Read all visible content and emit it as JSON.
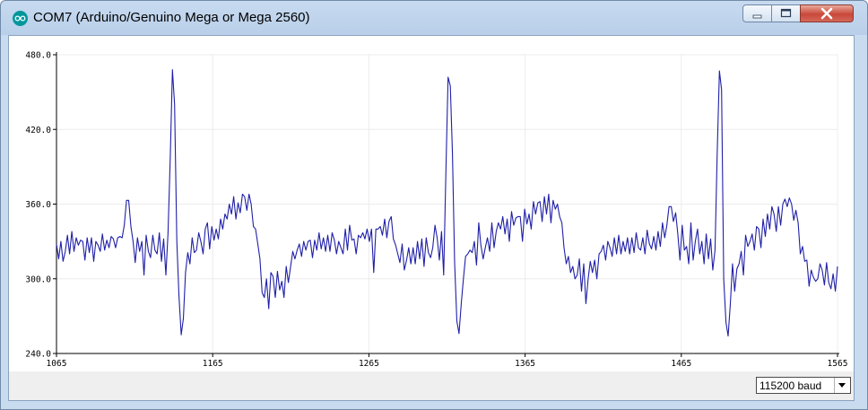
{
  "window": {
    "title": "COM7 (Arduino/Genuino Mega or Mega 2560)",
    "icon": "arduino-logo-icon",
    "controls": [
      "minimize-icon",
      "maximize-icon",
      "close-icon"
    ]
  },
  "footer": {
    "baud_rate": "115200 baud"
  },
  "chart_data": {
    "type": "line",
    "title": "",
    "xlabel": "",
    "ylabel": "",
    "xlim": [
      1065,
      1565
    ],
    "ylim": [
      240,
      480
    ],
    "x_ticks": [
      "1065",
      "1165",
      "1265",
      "1365",
      "1465",
      "1565"
    ],
    "y_ticks": [
      "480.0",
      "420.0",
      "360.0",
      "300.0",
      "240.0"
    ],
    "grid": true,
    "line_color": "#1f1fa8",
    "series": [
      {
        "values": [
          328,
          316,
          330,
          314,
          322,
          335,
          320,
          338,
          322,
          333,
          327,
          331,
          330,
          315,
          333,
          321,
          333,
          314,
          330,
          327,
          322,
          336,
          323,
          331,
          325,
          334,
          332,
          325,
          333,
          334,
          333,
          343,
          363,
          363,
          342,
          330,
          313,
          333,
          322,
          330,
          303,
          335,
          322,
          317,
          335,
          323,
          320,
          337,
          314,
          332,
          303,
          337,
          398,
          468,
          440,
          330,
          286,
          255,
          268,
          305,
          321,
          312,
          333,
          321,
          323,
          337,
          330,
          320,
          340,
          345,
          324,
          342,
          331,
          340,
          332,
          348,
          340,
          352,
          348,
          360,
          352,
          366,
          348,
          361,
          353,
          368,
          366,
          355,
          368,
          360,
          342,
          340,
          328,
          316,
          289,
          285,
          300,
          276,
          305,
          302,
          285,
          306,
          291,
          298,
          285,
          310,
          297,
          310,
          322,
          316,
          323,
          328,
          318,
          330,
          323,
          330,
          331,
          317,
          331,
          323,
          337,
          324,
          333,
          322,
          335,
          322,
          337,
          331,
          320,
          330,
          325,
          320,
          340,
          323,
          343,
          331,
          332,
          320,
          335,
          333,
          337,
          332,
          340,
          330,
          340,
          305,
          340,
          340,
          342,
          335,
          348,
          333,
          346,
          350,
          332,
          327,
          320,
          313,
          328,
          307,
          315,
          325,
          312,
          325,
          312,
          330,
          316,
          332,
          310,
          333,
          321,
          317,
          325,
          343,
          333,
          315,
          338,
          303,
          387,
          462,
          455,
          400,
          313,
          266,
          256,
          280,
          300,
          318,
          320,
          323,
          321,
          330,
          311,
          345,
          327,
          316,
          325,
          333,
          322,
          345,
          325,
          338,
          345,
          340,
          350,
          336,
          348,
          330,
          354,
          343,
          349,
          350,
          350,
          330,
          356,
          344,
          352,
          340,
          362,
          352,
          361,
          362,
          346,
          366,
          352,
          368,
          345,
          363,
          356,
          360,
          350,
          345,
          325,
          312,
          318,
          305,
          310,
          300,
          303,
          316,
          290,
          312,
          280,
          300,
          314,
          305,
          315,
          300,
          320,
          322,
          327,
          315,
          330,
          325,
          318,
          333,
          320,
          335,
          320,
          330,
          322,
          333,
          320,
          333,
          321,
          337,
          325,
          323,
          333,
          320,
          339,
          328,
          324,
          334,
          323,
          338,
          326,
          345,
          333,
          343,
          358,
          358,
          346,
          353,
          336,
          315,
          343,
          323,
          326,
          312,
          345,
          315,
          330,
          340,
          320,
          330,
          312,
          336,
          316,
          332,
          307,
          323,
          400,
          467,
          452,
          300,
          265,
          254,
          280,
          312,
          290,
          308,
          312,
          322,
          303,
          335,
          326,
          330,
          336,
          323,
          342,
          340,
          325,
          348,
          334,
          352,
          340,
          358,
          352,
          338,
          358,
          343,
          360,
          364,
          358,
          365,
          360,
          347,
          355,
          345,
          320,
          326,
          314,
          315,
          294,
          307,
          301,
          298,
          300,
          312,
          307,
          295,
          313,
          297,
          292,
          304,
          290,
          310
        ]
      }
    ]
  }
}
